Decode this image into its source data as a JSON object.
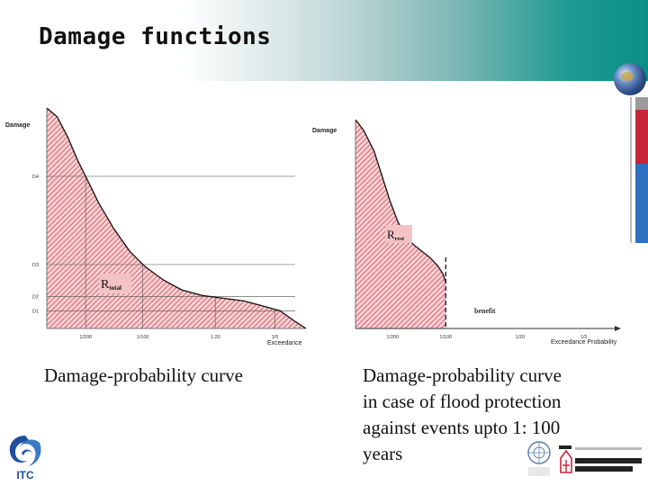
{
  "slide": {
    "title": "Damage functions"
  },
  "captions": {
    "left": "Damage-probability curve",
    "right_lines": [
      "Damage-probability curve",
      "in case of flood protection",
      "against events upto 1: 100",
      "years"
    ]
  },
  "logos": {
    "itc": "ITC"
  },
  "colors": {
    "fill": "#e06a72",
    "curve": "#111111",
    "header_accent": "#0a8f86"
  },
  "chart_data": [
    {
      "type": "area",
      "ylabel": "Damage",
      "xlabel": "Exceedance",
      "y_ticks": [
        "D4",
        "D3",
        "D2",
        "D1"
      ],
      "x_ticks": [
        "1/200",
        "1/100",
        "1:20",
        "1/5"
      ],
      "annotation": "R_total",
      "annotation_main": "R",
      "annotation_sub": "total",
      "curve": [
        [
          0.0,
          1.0
        ],
        [
          0.04,
          0.96
        ],
        [
          0.08,
          0.87
        ],
        [
          0.12,
          0.76
        ],
        [
          0.15,
          0.69
        ],
        [
          0.2,
          0.57
        ],
        [
          0.26,
          0.45
        ],
        [
          0.32,
          0.35
        ],
        [
          0.38,
          0.28
        ],
        [
          0.45,
          0.22
        ],
        [
          0.52,
          0.175
        ],
        [
          0.6,
          0.15
        ],
        [
          0.68,
          0.137
        ],
        [
          0.76,
          0.125
        ],
        [
          0.84,
          0.1
        ],
        [
          0.9,
          0.08
        ],
        [
          0.96,
          0.03
        ],
        [
          1.0,
          0.0
        ]
      ],
      "y_tick_values": [
        0.69,
        0.29,
        0.145,
        0.08
      ],
      "x_tick_values": [
        0.15,
        0.37,
        0.65,
        0.88
      ],
      "gridlines": true
    },
    {
      "type": "area",
      "ylabel": "Damage",
      "xlabel": "Exceedance Probability",
      "x_ticks": [
        "1/200",
        "1/100",
        "1/20",
        "1/5"
      ],
      "annotation": "R_rest",
      "annotation_main": "R",
      "annotation_sub": "rest",
      "benefit_label": "benefit",
      "curve": [
        [
          0.0,
          1.0
        ],
        [
          0.03,
          0.95
        ],
        [
          0.07,
          0.85
        ],
        [
          0.1,
          0.73
        ],
        [
          0.13,
          0.61
        ],
        [
          0.16,
          0.51
        ],
        [
          0.19,
          0.44
        ],
        [
          0.22,
          0.4
        ],
        [
          0.25,
          0.37
        ],
        [
          0.28,
          0.34
        ],
        [
          0.31,
          0.3
        ],
        [
          0.33,
          0.26
        ],
        [
          0.34,
          0.22
        ]
      ],
      "cutoff_x": 0.34,
      "x_tick_values": [
        0.14,
        0.34,
        0.62,
        0.86
      ]
    }
  ]
}
